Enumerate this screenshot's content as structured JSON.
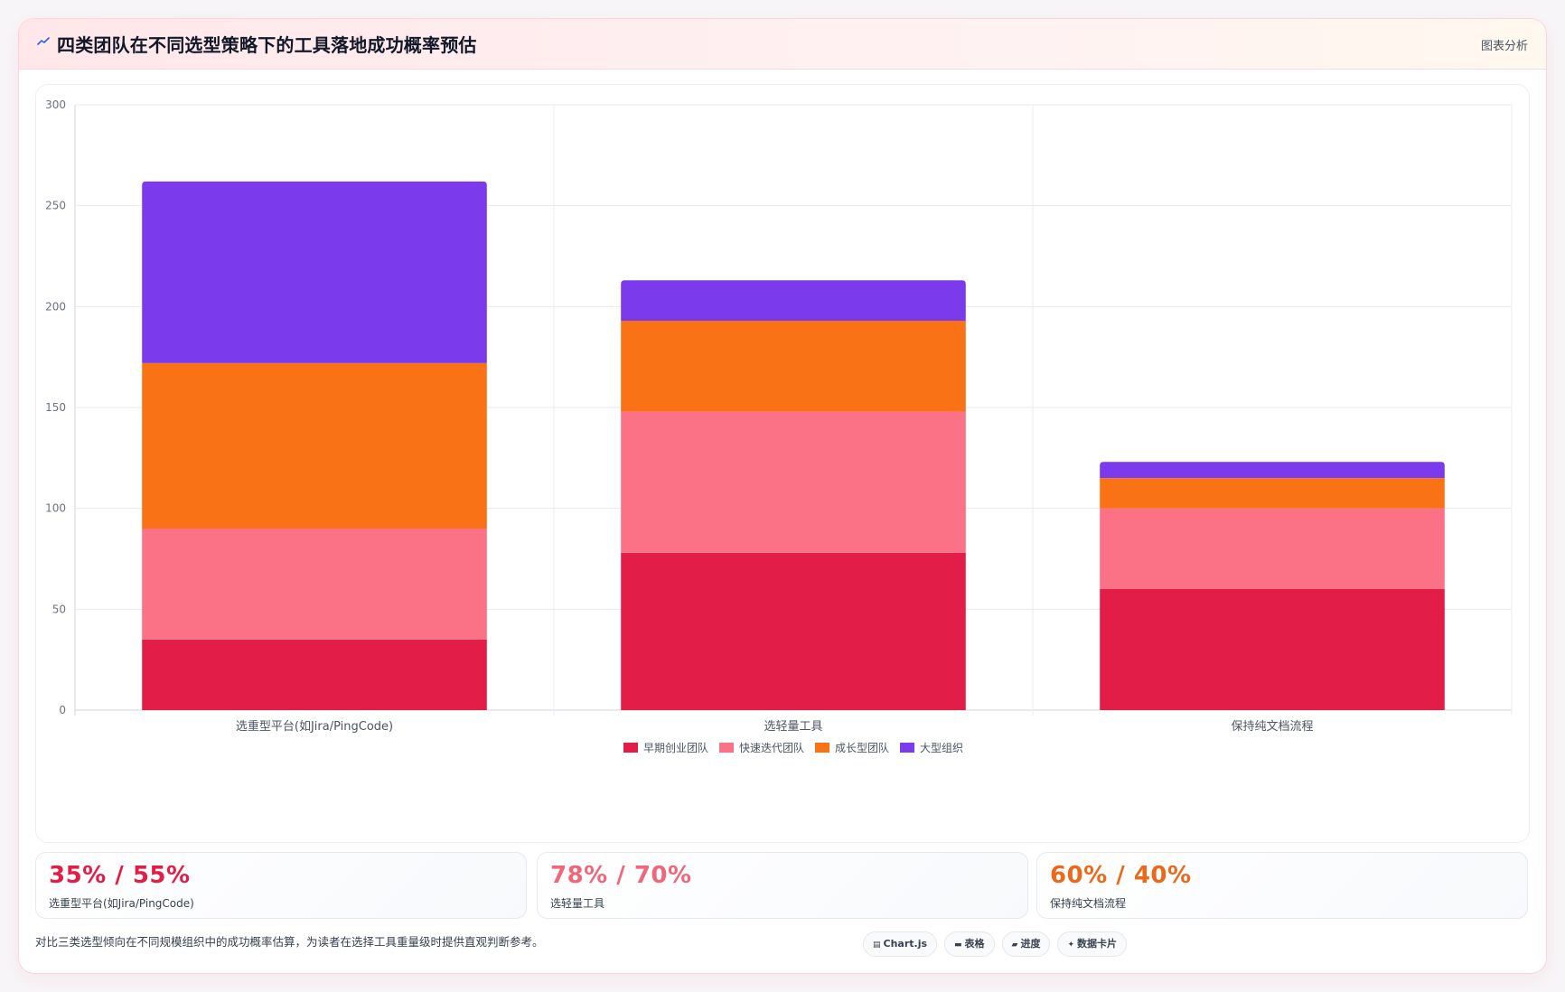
{
  "header": {
    "title": "四类团队在不同选型策略下的工具落地成功概率预估",
    "action_label": "图表分析"
  },
  "colors": {
    "accent": "#e11d48"
  },
  "chart_data": {
    "type": "bar",
    "stacked": true,
    "categories": [
      "选重型平台(如Jira/PingCode)",
      "选轻量工具",
      "保持纯文档流程"
    ],
    "series": [
      {
        "name": "早期创业团队",
        "color": "#e11d48",
        "values": [
          35,
          78,
          60
        ]
      },
      {
        "name": "快速迭代团队",
        "color": "#fb7185",
        "values": [
          55,
          70,
          40
        ]
      },
      {
        "name": "成长型团队",
        "color": "#f97316",
        "values": [
          82,
          45,
          15
        ]
      },
      {
        "name": "大型组织",
        "color": "#7c3aed",
        "values": [
          90,
          20,
          8
        ]
      }
    ],
    "ylim": [
      0,
      300
    ],
    "yticks": [
      0,
      50,
      100,
      150,
      200,
      250,
      300
    ],
    "grid": true,
    "legend": "bottom",
    "xlabel": "",
    "ylabel": ""
  },
  "stats": [
    {
      "value": "35% / 55%",
      "label": "选重型平台(如Jira/PingCode)",
      "color": "#e11d48"
    },
    {
      "value": "78% / 70%",
      "label": "选轻量工具",
      "color": "#f0667b"
    },
    {
      "value": "60% / 40%",
      "label": "保持纯文档流程",
      "color": "#ea6a1c"
    }
  ],
  "footer": {
    "note": "对比三类选型倾向在不同规模组织中的成功概率估算，为读者在选择工具重量级时提供直观判断参考。",
    "chips": [
      {
        "icon": "chart-icon",
        "glyph": "▤",
        "label": "Chart.js"
      },
      {
        "icon": "table-icon",
        "glyph": "▬",
        "label": "表格"
      },
      {
        "icon": "progress-icon",
        "glyph": "▰",
        "label": "进度"
      },
      {
        "icon": "sparkle-icon",
        "glyph": "✦",
        "label": "数据卡片"
      }
    ]
  }
}
